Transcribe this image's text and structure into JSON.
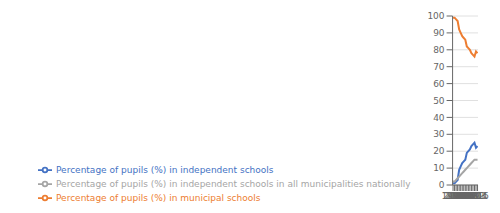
{
  "chart_data": {
    "type": "line",
    "x": [
      1999,
      2000,
      2001,
      2002,
      2003,
      2004,
      2005,
      2006,
      2007,
      2008,
      2009,
      2010,
      2011,
      2012,
      2013,
      2014,
      2015
    ],
    "xlim": [
      1998.7,
      2015.3
    ],
    "xticks": [
      1999,
      2000,
      2001,
      2002,
      2003,
      2004,
      2005,
      2006,
      2007,
      2008,
      2009,
      2010,
      2011,
      2012,
      2013,
      2014,
      2015
    ],
    "ylim": [
      0,
      100
    ],
    "yticks": [
      0,
      10,
      20,
      30,
      40,
      50,
      60,
      70,
      80,
      90,
      100
    ],
    "grid": true,
    "legend": "bottom",
    "series": [
      {
        "name": "Percentage of pupils (%) in independent schools",
        "color": "#4472c4",
        "values": [
          1,
          1,
          2,
          3,
          9,
          11,
          13,
          14,
          15,
          19,
          20,
          21,
          23,
          24,
          25,
          22,
          23
        ]
      },
      {
        "name": "Percentage of pupils (%) in municipal schools",
        "color": "#ed7d31",
        "values": [
          99,
          99,
          98,
          97,
          92,
          90,
          88,
          87,
          86,
          82,
          81,
          80,
          78,
          77,
          76,
          79,
          78
        ]
      },
      {
        "name": "Percentage of pupils (%) in independent schools in all municipalities nationally",
        "color": "#a5a5a5",
        "values": [
          2,
          2,
          3,
          4,
          5,
          6,
          7,
          8,
          9,
          10,
          11,
          12,
          13,
          14,
          15,
          15,
          15
        ]
      }
    ]
  }
}
